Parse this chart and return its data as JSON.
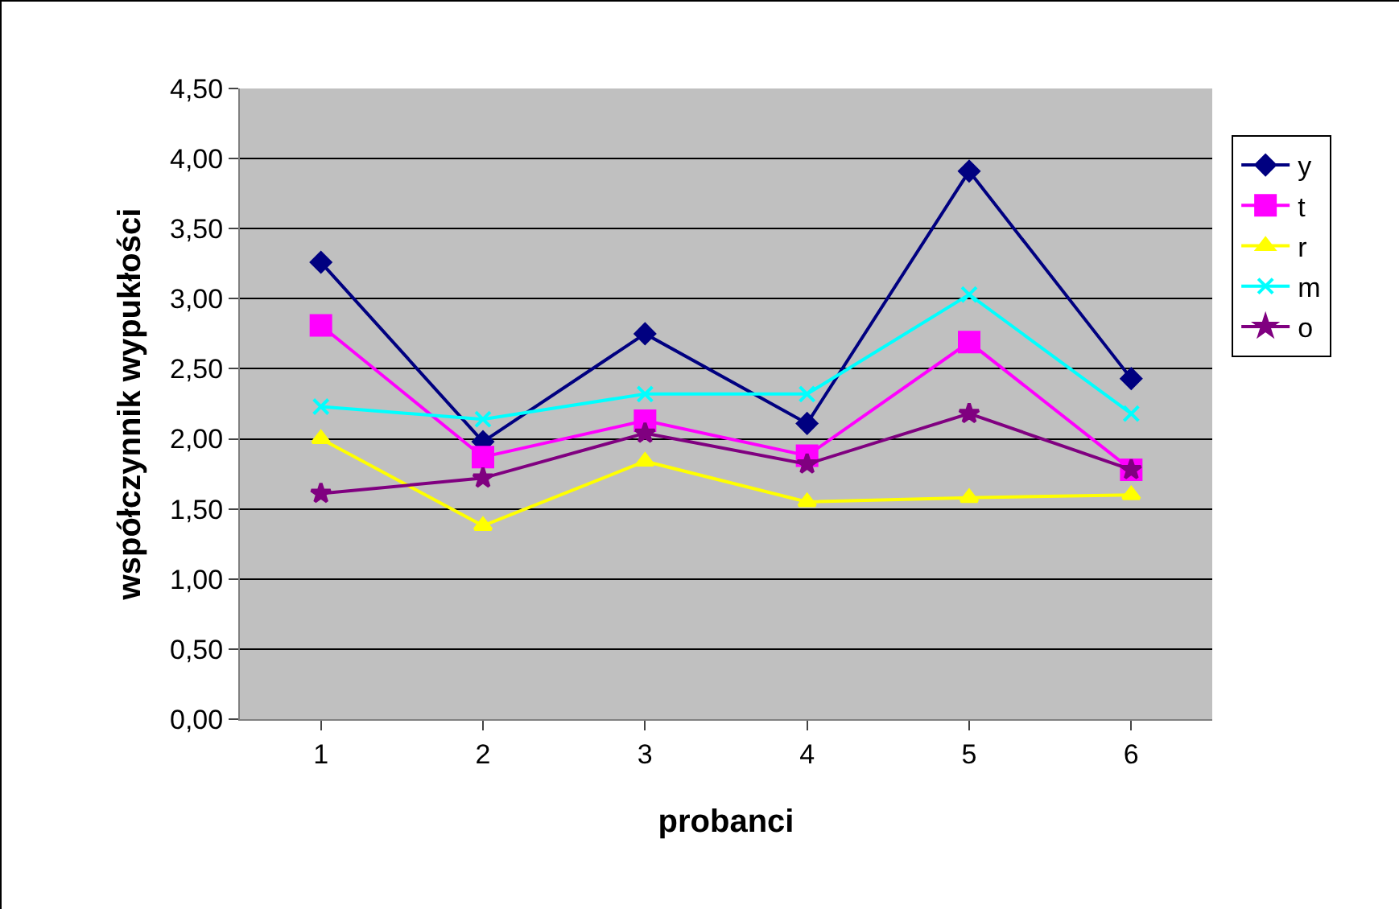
{
  "chart_data": {
    "type": "line",
    "xlabel": "probanci",
    "ylabel": "współczynnik wypukłości",
    "categories": [
      "1",
      "2",
      "3",
      "4",
      "5",
      "6"
    ],
    "ylim": [
      0,
      4.5
    ],
    "yticks": [
      {
        "value": 0,
        "label": "0,00"
      },
      {
        "value": 0.5,
        "label": "0,50"
      },
      {
        "value": 1,
        "label": "1,00"
      },
      {
        "value": 1.5,
        "label": "1,50"
      },
      {
        "value": 2,
        "label": "2,00"
      },
      {
        "value": 2.5,
        "label": "2,50"
      },
      {
        "value": 3,
        "label": "3,00"
      },
      {
        "value": 3.5,
        "label": "3,50"
      },
      {
        "value": 4,
        "label": "4,00"
      },
      {
        "value": 4.5,
        "label": "4,50"
      }
    ],
    "grid": "y",
    "legend": "right",
    "series": [
      {
        "name": "y",
        "color": "#000080",
        "marker": "diamond",
        "values": [
          3.26,
          1.98,
          2.75,
          2.11,
          3.91,
          2.43
        ]
      },
      {
        "name": "t",
        "color": "#ff00ff",
        "marker": "square",
        "values": [
          2.81,
          1.87,
          2.13,
          1.88,
          2.69,
          1.78
        ]
      },
      {
        "name": "r",
        "color": "#ffff00",
        "marker": "triangle",
        "values": [
          2.0,
          1.38,
          1.84,
          1.55,
          1.58,
          1.6
        ]
      },
      {
        "name": "m",
        "color": "#00ffff",
        "marker": "cross",
        "values": [
          2.23,
          2.14,
          2.32,
          2.32,
          3.03,
          2.18
        ]
      },
      {
        "name": "o",
        "color": "#800080",
        "marker": "star",
        "values": [
          1.61,
          1.72,
          2.04,
          1.82,
          2.18,
          1.78
        ]
      }
    ]
  }
}
